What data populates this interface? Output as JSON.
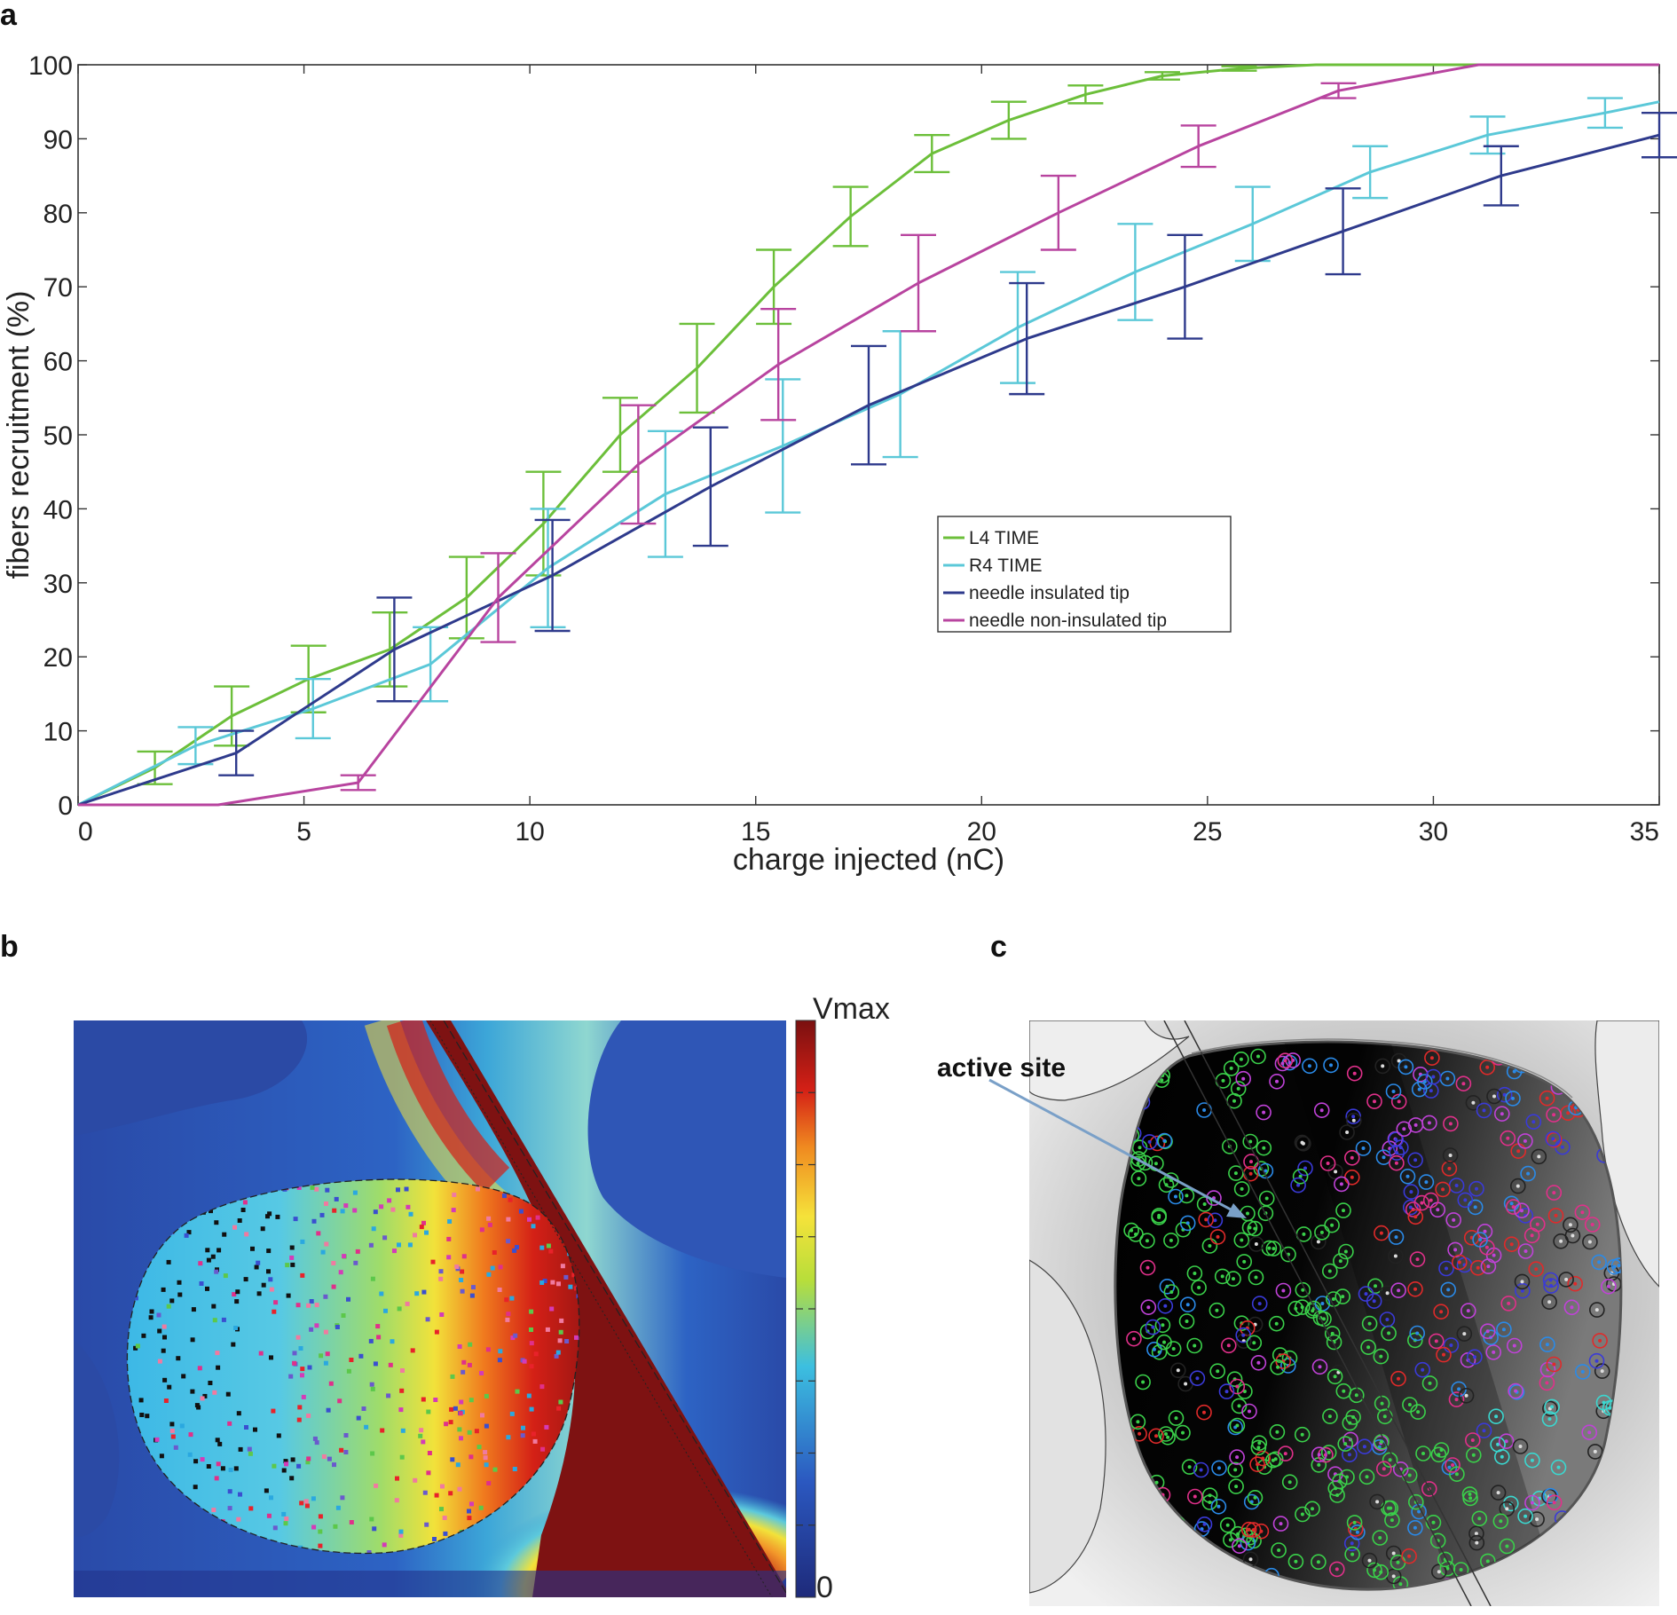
{
  "panels": {
    "a": "a",
    "b": "b",
    "c": "c"
  },
  "chart_data": [
    {
      "type": "line",
      "panel": "a",
      "title": "",
      "xlabel": "charge injected (nC)",
      "ylabel": "fibers recruitment (%)",
      "xlim": [
        0,
        35
      ],
      "ylim": [
        0,
        100
      ],
      "xticks": [
        0,
        5,
        10,
        15,
        20,
        25,
        30,
        35
      ],
      "yticks": [
        0,
        10,
        20,
        30,
        40,
        50,
        60,
        70,
        80,
        90,
        100
      ],
      "grid": false,
      "legend_position": "center-right",
      "series": [
        {
          "name": "L4 TIME",
          "color": "#6cbf3a",
          "x": [
            0,
            1.7,
            3.4,
            5.1,
            6.9,
            8.6,
            10.3,
            12,
            13.7,
            15.4,
            17.1,
            18.9,
            20.6,
            22.3,
            24,
            25.7,
            27.4,
            29.1,
            30.9,
            32.6,
            35
          ],
          "y": [
            0,
            5,
            12,
            17,
            21,
            28,
            38,
            50,
            59,
            70,
            79.5,
            88,
            92.5,
            96,
            98.5,
            99.5,
            100,
            100,
            100,
            100,
            100
          ],
          "err": [
            null,
            2.2,
            4,
            4.5,
            5,
            5.5,
            7,
            5,
            6,
            5,
            4,
            2.5,
            2.5,
            1.2,
            0.5,
            0.3,
            null,
            null,
            null,
            null,
            null
          ]
        },
        {
          "name": "R4 TIME",
          "color": "#5bc8d8",
          "x": [
            0,
            2.6,
            5.2,
            7.8,
            10.4,
            13,
            15.6,
            18.2,
            20.8,
            23.4,
            26,
            28.6,
            31.2,
            33.8,
            35
          ],
          "y": [
            0,
            8,
            13,
            19,
            32,
            42,
            48.5,
            55.5,
            64.5,
            72,
            78.5,
            85.5,
            90.5,
            93.5,
            95
          ],
          "err": [
            null,
            2.5,
            4,
            5,
            8,
            8.5,
            9,
            8.5,
            7.5,
            6.5,
            5,
            3.5,
            2.5,
            2,
            null
          ]
        },
        {
          "name": "needle insulated tip",
          "color": "#2e3a8c",
          "x": [
            0,
            3.5,
            7,
            10.5,
            14,
            17.5,
            21,
            24.5,
            28,
            31.5,
            35
          ],
          "y": [
            0,
            7,
            21,
            31,
            43,
            54,
            63,
            70,
            77.5,
            85,
            90.5
          ],
          "err": [
            null,
            3,
            7,
            7.5,
            8,
            8,
            7.5,
            7,
            5.8,
            4,
            3
          ]
        },
        {
          "name": "needle non-insulated tip",
          "color": "#b8449f",
          "x": [
            0,
            3.1,
            6.2,
            9.3,
            12.4,
            15.5,
            18.6,
            21.7,
            24.8,
            27.9,
            31,
            35
          ],
          "y": [
            0,
            0,
            3,
            28,
            46,
            59.5,
            70.5,
            80,
            89,
            96.5,
            100,
            100
          ],
          "err": [
            null,
            null,
            1,
            6,
            8,
            7.5,
            6.5,
            5,
            2.8,
            1,
            null,
            null
          ]
        }
      ]
    },
    {
      "type": "heatmap",
      "panel": "b",
      "colorbar_max_label": "Vmax",
      "colorbar_min_label": "0",
      "colormap": [
        "#1e2a7a",
        "#2b58c0",
        "#3cbfe0",
        "#b8de3a",
        "#f5e23a",
        "#f08a20",
        "#d42016",
        "#7a1010"
      ]
    },
    {
      "type": "scatter",
      "panel": "c",
      "annotation": "active site"
    }
  ]
}
